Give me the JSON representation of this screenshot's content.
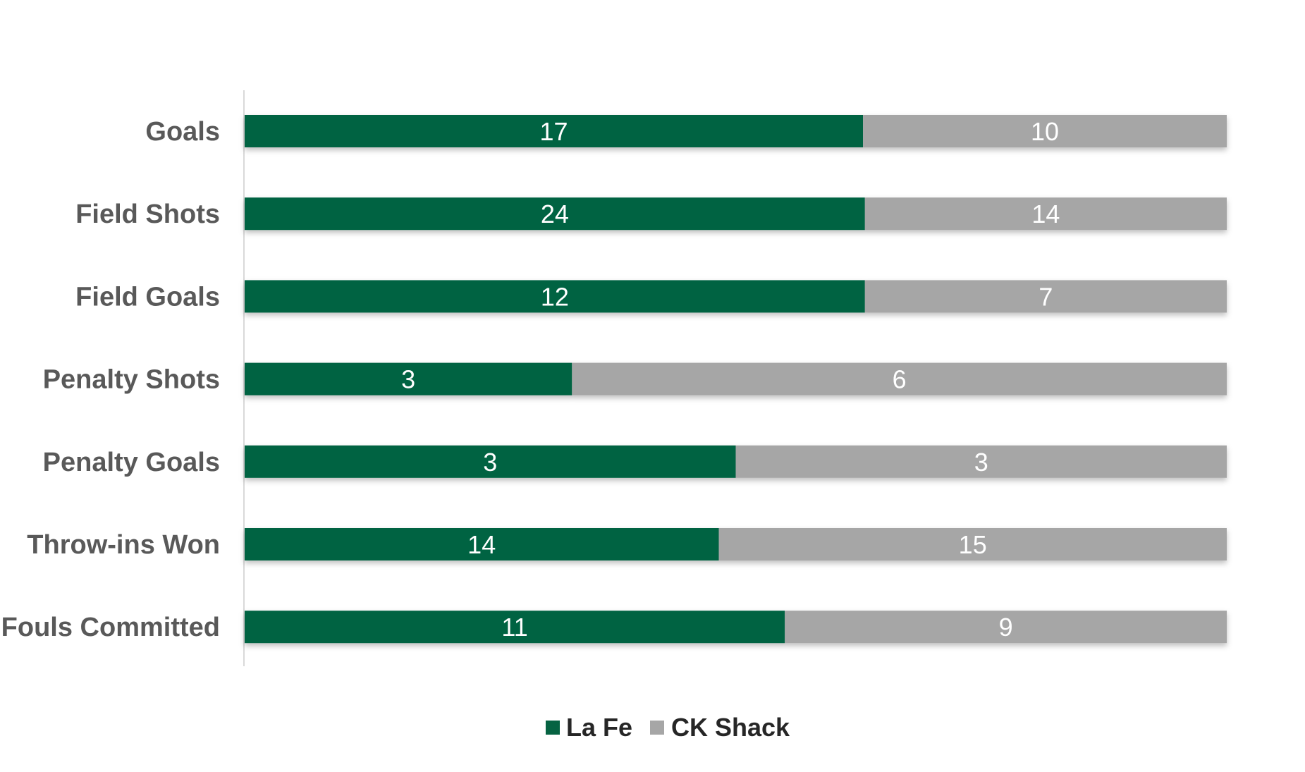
{
  "chart_data": {
    "type": "bar",
    "orientation": "horizontal",
    "stacked": "percent",
    "categories": [
      "Goals",
      "Field Shots",
      "Field Goals",
      "Penalty Shots",
      "Penalty Goals",
      "Throw-ins Won",
      "Fouls Committed"
    ],
    "series": [
      {
        "name": "La Fe",
        "color": "#066342",
        "values": [
          17,
          24,
          12,
          3,
          3,
          14,
          11
        ]
      },
      {
        "name": "CK Shack",
        "color": "#a6a6a6",
        "values": [
          10,
          14,
          7,
          6,
          3,
          15,
          9
        ]
      }
    ],
    "title": "",
    "xlabel": "",
    "ylabel": "",
    "legend_position": "bottom",
    "grid": false
  }
}
